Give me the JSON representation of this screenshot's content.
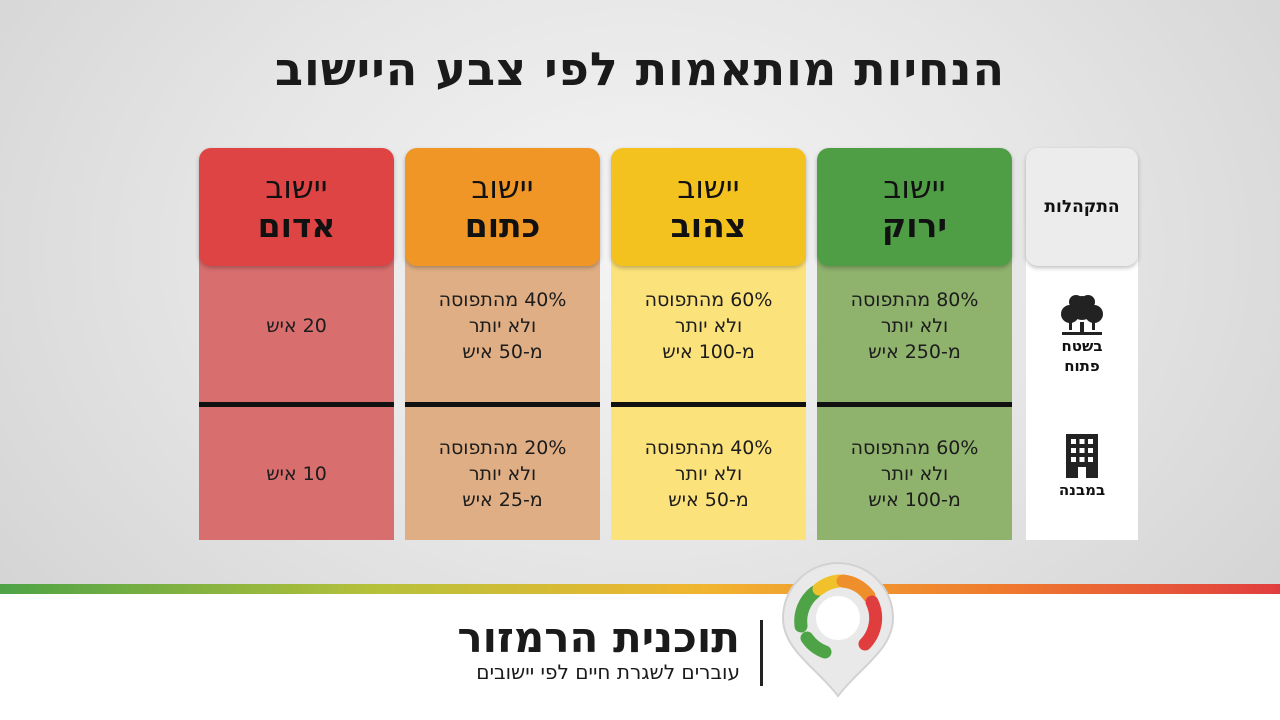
{
  "title": "הנחיות מותאמות לפי צבע היישוב",
  "columns_header": "התקהלות",
  "row_labels": {
    "open_area": "בשטח\nפתוח",
    "building": "במבנה"
  },
  "columns": [
    {
      "id": "green",
      "line1": "יישוב",
      "line2": "ירוק",
      "open_area": "80% מהתפוסה\nולא יותר\nמ-250 איש",
      "building": "60% מהתפוסה\nולא יותר\nמ-100 איש"
    },
    {
      "id": "yellow",
      "line1": "יישוב",
      "line2": "צהוב",
      "open_area": "60% מהתפוסה\nולא יותר\nמ-100 איש",
      "building": "40% מהתפוסה\nולא יותר\nמ-50 איש"
    },
    {
      "id": "orange",
      "line1": "יישוב",
      "line2": "כתום",
      "open_area": "40% מהתפוסה\nולא יותר\nמ-50 איש",
      "building": "20% מהתפוסה\nולא יותר\nמ-25 איש"
    },
    {
      "id": "red",
      "line1": "יישוב",
      "line2": "אדום",
      "open_area": "20 איש",
      "building": "10 איש"
    }
  ],
  "colors": {
    "green": "#4f9e45",
    "yellow": "#f3c21f",
    "orange": "#ef9627",
    "red": "#de4444"
  },
  "icons": {
    "open_area": "trees-icon",
    "building": "building-icon",
    "logo": "traffic-light-pin-logo"
  },
  "footer": {
    "brand": "תוכנית הרמזור",
    "tagline": "עוברים לשגרת חיים לפי יישובים"
  }
}
